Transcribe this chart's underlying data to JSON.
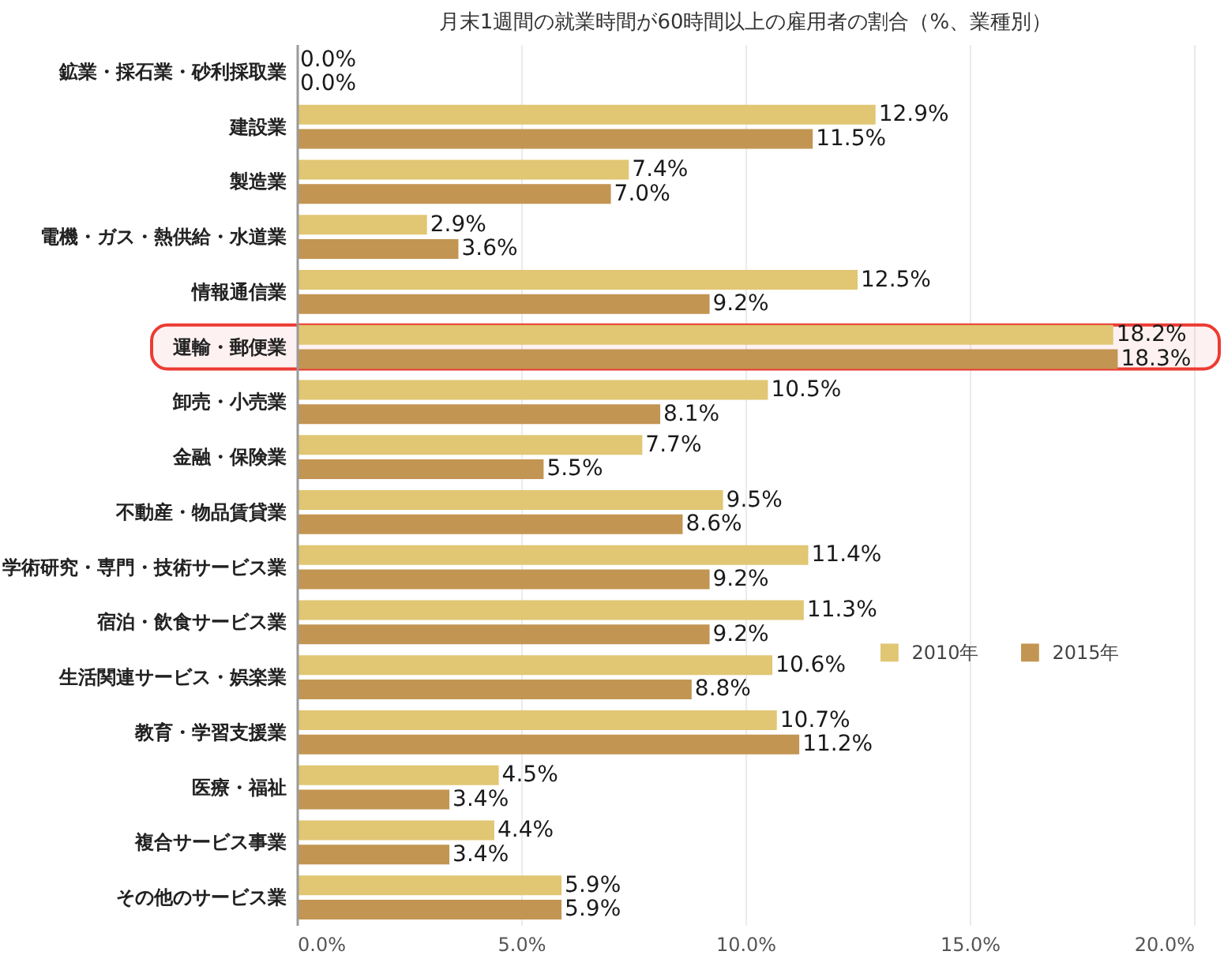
{
  "chart_data": {
    "type": "bar",
    "orientation": "horizontal",
    "title": "月末1週間の就業時間が60時間以上の雇用者の割合（%、業種別）",
    "categories": [
      "鉱業・採石業・砂利採取業",
      "建設業",
      "製造業",
      "電機・ガス・熱供給・水道業",
      "情報通信業",
      "運輸・郵便業",
      "卸売・小売業",
      "金融・保険業",
      "不動産・物品賃貸業",
      "学術研究・専門・技術サービス業",
      "宿泊・飲食サービス業",
      "生活関連サービス・娯楽業",
      "教育・学習支援業",
      "医療・福祉",
      "複合サービス事業",
      "その他のサービス業"
    ],
    "series": [
      {
        "name": "2010年",
        "color": "#e1c673",
        "values": [
          0.0,
          12.9,
          7.4,
          2.9,
          12.5,
          18.2,
          10.5,
          7.7,
          9.5,
          11.4,
          11.3,
          10.6,
          10.7,
          4.5,
          4.4,
          5.9
        ],
        "value_labels": [
          "0.0%",
          "12.9%",
          "7.4%",
          "2.9%",
          "12.5%",
          "18.2%",
          "10.5%",
          "7.7%",
          "9.5%",
          "11.4%",
          "11.3%",
          "10.6%",
          "10.7%",
          "4.5%",
          "4.4%",
          "5.9%"
        ]
      },
      {
        "name": "2015年",
        "color": "#c39552",
        "values": [
          0.0,
          11.5,
          7.0,
          3.6,
          9.2,
          18.3,
          8.1,
          5.5,
          8.6,
          9.2,
          9.2,
          8.8,
          11.2,
          3.4,
          3.4,
          5.9
        ],
        "value_labels": [
          "0.0%",
          "11.5%",
          "7.0%",
          "3.6%",
          "9.2%",
          "18.3%",
          "8.1%",
          "5.5%",
          "8.6%",
          "9.2%",
          "9.2%",
          "8.8%",
          "11.2%",
          "3.4%",
          "3.4%",
          "5.9%"
        ]
      }
    ],
    "xlim": [
      0,
      20
    ],
    "xticks": [
      {
        "value": 0,
        "label": "0.0%"
      },
      {
        "value": 5,
        "label": "5.0%"
      },
      {
        "value": 10,
        "label": "10.0%"
      },
      {
        "value": 15,
        "label": "15.0%"
      },
      {
        "value": 20,
        "label": "20.0%"
      }
    ],
    "grid": "x",
    "legend": "right",
    "bands": [
      {
        "axis": "y",
        "from": "運輸・郵便業",
        "to": "運輸・郵便業",
        "color": "#ec3b33"
      }
    ]
  }
}
